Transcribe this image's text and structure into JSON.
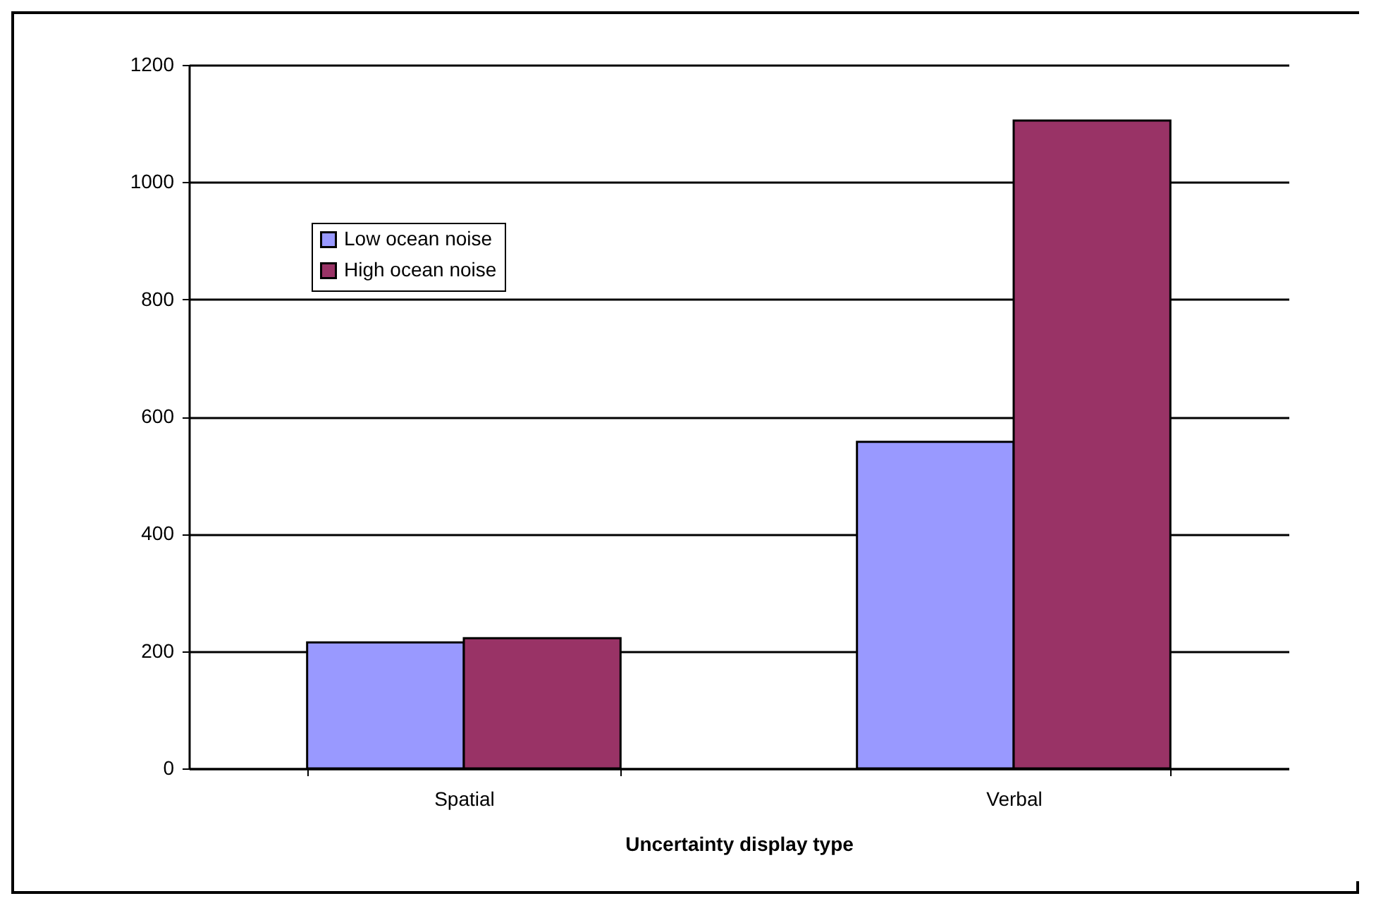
{
  "chart_data": {
    "type": "bar",
    "xlabel": "Uncertainty display type",
    "categories": [
      "Spatial",
      "Verbal"
    ],
    "series": [
      {
        "name": "Low ocean noise",
        "color": "#9999ff",
        "values": [
          215,
          557
        ]
      },
      {
        "name": "High ocean noise",
        "color": "#993366",
        "values": [
          222,
          1105
        ]
      }
    ],
    "ylim": [
      0,
      1200
    ],
    "yticks": [
      0,
      200,
      400,
      600,
      800,
      1000,
      1200
    ],
    "grid": "y",
    "legend": "top left"
  }
}
